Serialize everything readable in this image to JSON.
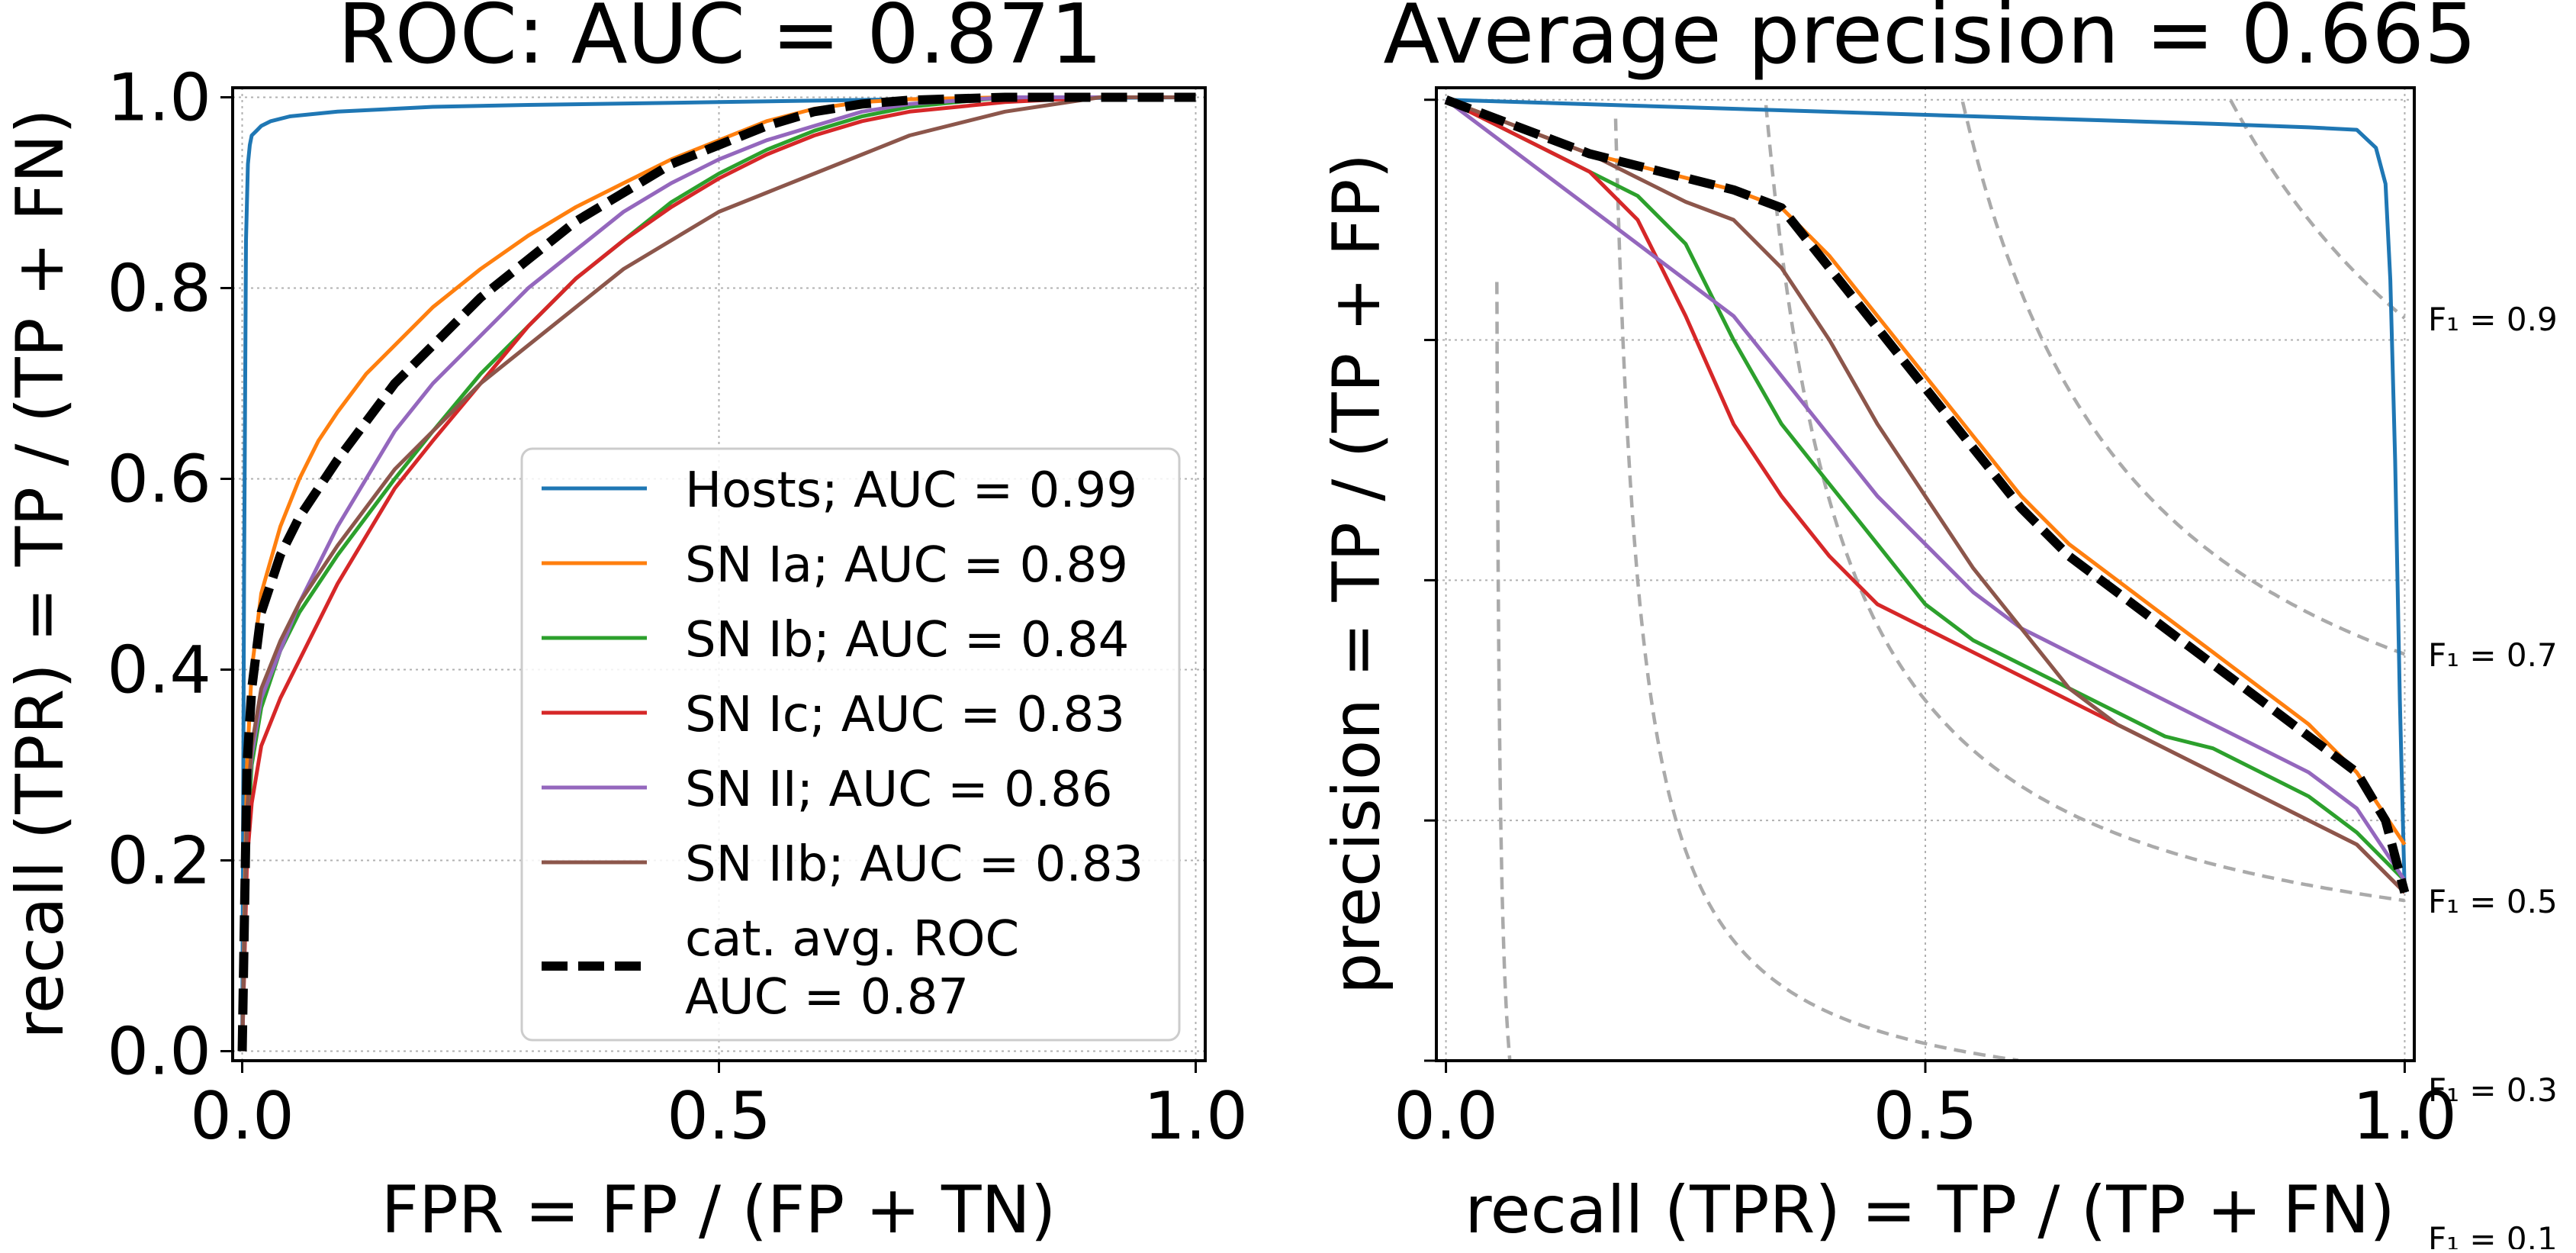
{
  "chart_data": [
    {
      "type": "line",
      "title": "ROC: AUC = 0.871",
      "xlabel": "FPR = FP / (FP + TN)",
      "ylabel": "recall (TPR) = TP / (TP + FN)",
      "xlim": [
        -0.01,
        1.01
      ],
      "ylim": [
        -0.01,
        1.01
      ],
      "xticks": [
        "0.0",
        "0.5",
        "1.0"
      ],
      "yticks": [
        "0.0",
        "0.2",
        "0.4",
        "0.6",
        "0.8",
        "1.0"
      ],
      "grid": true,
      "legend_position": "lower-right",
      "series": [
        {
          "name": "Hosts; AUC = 0.99",
          "color": "#1f77b4",
          "style": "solid",
          "x": [
            0,
            0.002,
            0.004,
            0.006,
            0.008,
            0.01,
            0.015,
            0.02,
            0.03,
            0.05,
            0.1,
            0.2,
            0.3,
            0.5,
            0.7,
            1.0
          ],
          "y": [
            0,
            0.5,
            0.85,
            0.93,
            0.95,
            0.96,
            0.965,
            0.97,
            0.975,
            0.98,
            0.985,
            0.99,
            0.992,
            0.995,
            0.998,
            1.0
          ]
        },
        {
          "name": "SN Ia; AUC = 0.89",
          "color": "#ff7f0e",
          "style": "solid",
          "x": [
            0,
            0.005,
            0.01,
            0.02,
            0.04,
            0.06,
            0.08,
            0.1,
            0.13,
            0.16,
            0.2,
            0.25,
            0.3,
            0.35,
            0.4,
            0.45,
            0.5,
            0.55,
            0.6,
            0.65,
            0.7,
            0.8,
            0.9,
            1.0
          ],
          "y": [
            0,
            0.3,
            0.4,
            0.48,
            0.55,
            0.6,
            0.64,
            0.67,
            0.71,
            0.74,
            0.78,
            0.82,
            0.855,
            0.885,
            0.91,
            0.935,
            0.955,
            0.975,
            0.988,
            0.995,
            0.998,
            1.0,
            1.0,
            1.0
          ]
        },
        {
          "name": "SN Ib; AUC = 0.84",
          "color": "#2ca02c",
          "style": "solid",
          "x": [
            0,
            0.005,
            0.01,
            0.02,
            0.04,
            0.06,
            0.08,
            0.1,
            0.13,
            0.16,
            0.2,
            0.25,
            0.3,
            0.35,
            0.4,
            0.45,
            0.5,
            0.55,
            0.6,
            0.65,
            0.7,
            0.8,
            0.9,
            1.0
          ],
          "y": [
            0,
            0.22,
            0.3,
            0.36,
            0.42,
            0.46,
            0.49,
            0.52,
            0.56,
            0.6,
            0.65,
            0.71,
            0.76,
            0.81,
            0.85,
            0.89,
            0.92,
            0.945,
            0.965,
            0.98,
            0.99,
            1.0,
            1.0,
            1.0
          ]
        },
        {
          "name": "SN Ic; AUC = 0.83",
          "color": "#d62728",
          "style": "solid",
          "x": [
            0,
            0.005,
            0.01,
            0.02,
            0.04,
            0.06,
            0.08,
            0.1,
            0.13,
            0.16,
            0.2,
            0.25,
            0.3,
            0.35,
            0.4,
            0.45,
            0.5,
            0.55,
            0.6,
            0.65,
            0.7,
            0.8,
            0.9,
            1.0
          ],
          "y": [
            0,
            0.2,
            0.26,
            0.32,
            0.37,
            0.41,
            0.45,
            0.49,
            0.54,
            0.59,
            0.64,
            0.7,
            0.76,
            0.81,
            0.85,
            0.885,
            0.915,
            0.94,
            0.96,
            0.975,
            0.985,
            0.995,
            1.0,
            1.0
          ]
        },
        {
          "name": "SN II; AUC = 0.86",
          "color": "#9467bd",
          "style": "solid",
          "x": [
            0,
            0.005,
            0.01,
            0.02,
            0.04,
            0.06,
            0.08,
            0.1,
            0.13,
            0.16,
            0.2,
            0.25,
            0.3,
            0.35,
            0.4,
            0.45,
            0.5,
            0.55,
            0.6,
            0.65,
            0.7,
            0.8,
            0.9,
            1.0
          ],
          "y": [
            0,
            0.25,
            0.31,
            0.37,
            0.42,
            0.47,
            0.51,
            0.55,
            0.6,
            0.65,
            0.7,
            0.75,
            0.8,
            0.84,
            0.88,
            0.91,
            0.935,
            0.955,
            0.97,
            0.985,
            0.993,
            1.0,
            1.0,
            1.0
          ]
        },
        {
          "name": "SN IIb; AUC = 0.83",
          "color": "#8c564b",
          "style": "solid",
          "x": [
            0,
            0.005,
            0.01,
            0.02,
            0.04,
            0.06,
            0.08,
            0.1,
            0.13,
            0.16,
            0.2,
            0.25,
            0.3,
            0.35,
            0.4,
            0.45,
            0.5,
            0.55,
            0.6,
            0.65,
            0.7,
            0.8,
            0.9,
            1.0
          ],
          "y": [
            0,
            0.25,
            0.32,
            0.38,
            0.43,
            0.47,
            0.5,
            0.53,
            0.57,
            0.61,
            0.65,
            0.7,
            0.74,
            0.78,
            0.82,
            0.85,
            0.88,
            0.9,
            0.92,
            0.94,
            0.96,
            0.985,
            1.0,
            1.0
          ]
        },
        {
          "name": "cat. avg. ROC\nAUC = 0.87",
          "color": "#000000",
          "style": "dashed",
          "x": [
            0,
            0.005,
            0.01,
            0.02,
            0.04,
            0.06,
            0.08,
            0.1,
            0.13,
            0.16,
            0.2,
            0.25,
            0.3,
            0.35,
            0.4,
            0.45,
            0.5,
            0.55,
            0.6,
            0.65,
            0.7,
            0.8,
            0.9,
            1.0
          ],
          "y": [
            0,
            0.3,
            0.38,
            0.46,
            0.52,
            0.56,
            0.59,
            0.62,
            0.66,
            0.7,
            0.74,
            0.79,
            0.83,
            0.87,
            0.9,
            0.93,
            0.95,
            0.97,
            0.985,
            0.993,
            0.997,
            1.0,
            1.0,
            1.0
          ]
        }
      ]
    },
    {
      "type": "line",
      "title": "Average precision = 0.665",
      "xlabel": "recall (TPR) = TP / (TP + FN)",
      "ylabel": "precision = TP / (TP + FP)",
      "xlim": [
        -0.01,
        1.01
      ],
      "ylim": [
        0.2,
        1.01
      ],
      "xticks": [
        "0.0",
        "0.5",
        "1.0"
      ],
      "grid": true,
      "series": [
        {
          "name": "Hosts",
          "color": "#1f77b4",
          "style": "solid",
          "x": [
            0,
            0.2,
            0.4,
            0.6,
            0.8,
            0.9,
            0.95,
            0.97,
            0.98,
            0.985,
            0.99,
            0.995,
            1.0
          ],
          "y": [
            1.0,
            0.995,
            0.99,
            0.985,
            0.98,
            0.977,
            0.975,
            0.96,
            0.93,
            0.85,
            0.7,
            0.5,
            0.34
          ]
        },
        {
          "name": "SN Ia",
          "color": "#ff7f0e",
          "style": "solid",
          "x": [
            0,
            0.05,
            0.1,
            0.15,
            0.2,
            0.25,
            0.3,
            0.35,
            0.4,
            0.45,
            0.5,
            0.55,
            0.6,
            0.65,
            0.7,
            0.75,
            0.8,
            0.85,
            0.9,
            0.95,
            1.0
          ],
          "y": [
            1.0,
            0.985,
            0.97,
            0.955,
            0.945,
            0.935,
            0.925,
            0.91,
            0.87,
            0.82,
            0.77,
            0.72,
            0.67,
            0.63,
            0.6,
            0.57,
            0.54,
            0.51,
            0.48,
            0.44,
            0.38
          ]
        },
        {
          "name": "SN Ib",
          "color": "#2ca02c",
          "style": "solid",
          "x": [
            0,
            0.05,
            0.1,
            0.15,
            0.2,
            0.25,
            0.3,
            0.35,
            0.4,
            0.45,
            0.5,
            0.55,
            0.6,
            0.65,
            0.7,
            0.75,
            0.8,
            0.85,
            0.9,
            0.95,
            1.0
          ],
          "y": [
            1.0,
            0.98,
            0.96,
            0.94,
            0.92,
            0.88,
            0.8,
            0.73,
            0.68,
            0.63,
            0.58,
            0.55,
            0.53,
            0.51,
            0.49,
            0.47,
            0.46,
            0.44,
            0.42,
            0.39,
            0.35
          ]
        },
        {
          "name": "SN Ic",
          "color": "#d62728",
          "style": "solid",
          "x": [
            0,
            0.05,
            0.1,
            0.15,
            0.2,
            0.25,
            0.3,
            0.35,
            0.4,
            0.45,
            0.5,
            0.55,
            0.6,
            0.65,
            0.7,
            0.75,
            0.8,
            0.85,
            0.9,
            0.95,
            1.0
          ],
          "y": [
            1.0,
            0.98,
            0.96,
            0.94,
            0.9,
            0.82,
            0.73,
            0.67,
            0.62,
            0.58,
            0.56,
            0.54,
            0.52,
            0.5,
            0.48,
            0.46,
            0.44,
            0.42,
            0.4,
            0.38,
            0.34
          ]
        },
        {
          "name": "SN II",
          "color": "#9467bd",
          "style": "solid",
          "x": [
            0,
            0.05,
            0.1,
            0.15,
            0.2,
            0.25,
            0.3,
            0.35,
            0.4,
            0.45,
            0.5,
            0.55,
            0.6,
            0.65,
            0.7,
            0.75,
            0.8,
            0.85,
            0.9,
            0.95,
            1.0
          ],
          "y": [
            1.0,
            0.97,
            0.94,
            0.91,
            0.88,
            0.85,
            0.82,
            0.77,
            0.72,
            0.67,
            0.63,
            0.59,
            0.56,
            0.54,
            0.52,
            0.5,
            0.48,
            0.46,
            0.44,
            0.41,
            0.35
          ]
        },
        {
          "name": "SN IIb",
          "color": "#8c564b",
          "style": "solid",
          "x": [
            0,
            0.05,
            0.1,
            0.15,
            0.2,
            0.25,
            0.3,
            0.35,
            0.4,
            0.45,
            0.5,
            0.55,
            0.6,
            0.65,
            0.7,
            0.75,
            0.8,
            0.85,
            0.9,
            0.95,
            1.0
          ],
          "y": [
            1.0,
            0.985,
            0.97,
            0.955,
            0.935,
            0.915,
            0.9,
            0.86,
            0.8,
            0.73,
            0.67,
            0.61,
            0.56,
            0.51,
            0.48,
            0.46,
            0.44,
            0.42,
            0.4,
            0.38,
            0.34
          ]
        },
        {
          "name": "cat. avg.",
          "color": "#000000",
          "style": "dashed",
          "x": [
            0,
            0.05,
            0.1,
            0.15,
            0.2,
            0.25,
            0.3,
            0.35,
            0.4,
            0.45,
            0.5,
            0.55,
            0.6,
            0.65,
            0.7,
            0.75,
            0.8,
            0.85,
            0.9,
            0.95,
            0.98,
            1.0
          ],
          "y": [
            1.0,
            0.985,
            0.97,
            0.955,
            0.945,
            0.935,
            0.925,
            0.91,
            0.86,
            0.81,
            0.76,
            0.71,
            0.66,
            0.62,
            0.59,
            0.56,
            0.53,
            0.5,
            0.47,
            0.44,
            0.4,
            0.34
          ]
        }
      ],
      "iso_f1": {
        "color": "#aaaaaa",
        "values": [
          0.1,
          0.3,
          0.5,
          0.7,
          0.9
        ],
        "labels": [
          "F₁ = 0.1",
          "F₁ = 0.3",
          "F₁ = 0.5",
          "F₁ = 0.7",
          "F₁ = 0.9"
        ]
      }
    }
  ]
}
